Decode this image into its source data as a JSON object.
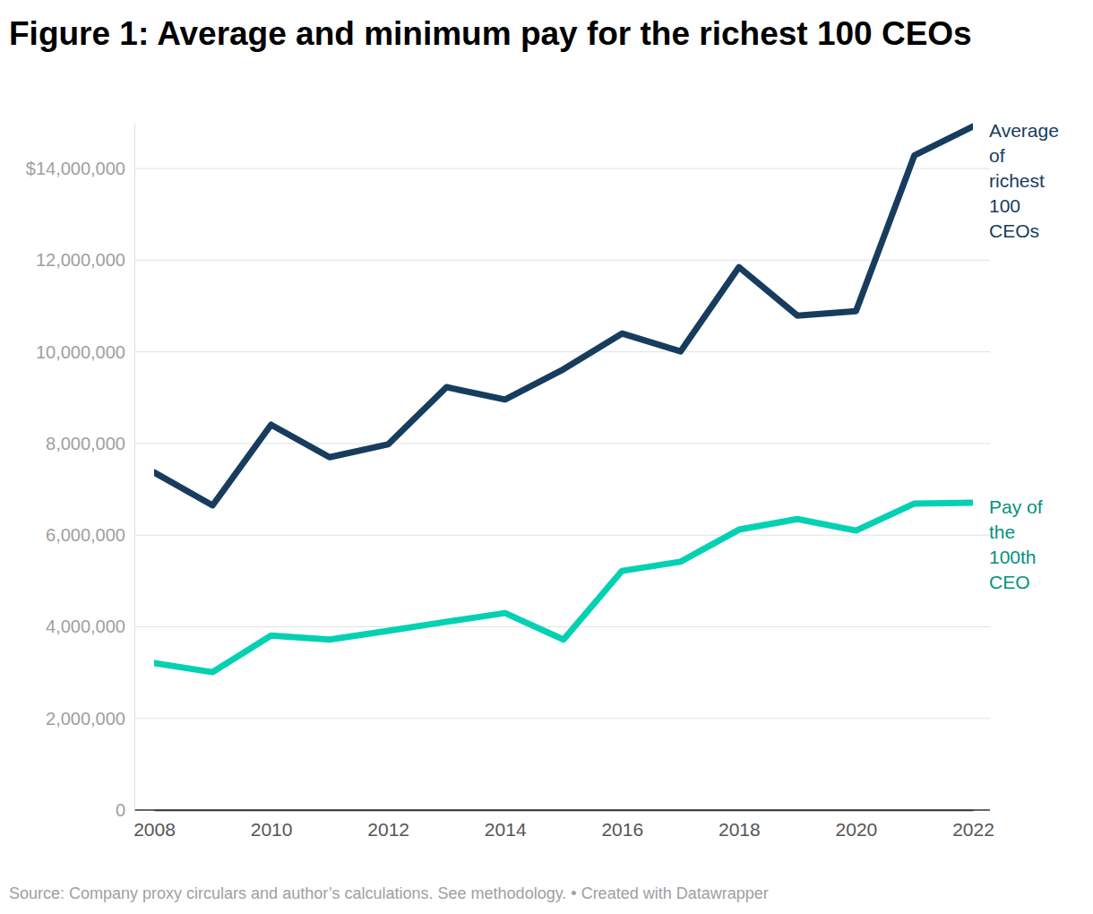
{
  "chart_data": {
    "type": "line",
    "title": "Figure 1: Average and minimum pay for the richest 100 CEOs",
    "source": "Source: Company proxy circulars and author’s calculations. See methodology. • Created with Datawrapper",
    "x": [
      2008,
      2009,
      2010,
      2011,
      2012,
      2013,
      2014,
      2015,
      2016,
      2017,
      2018,
      2019,
      2020,
      2021,
      2022
    ],
    "series": [
      {
        "name": "Average of richest 100 CEOs",
        "color": "#173c5e",
        "values": [
          7370000,
          6650000,
          8410000,
          7700000,
          7980000,
          9230000,
          8960000,
          9620000,
          10400000,
          10010000,
          11850000,
          10790000,
          10890000,
          14290000,
          14920000
        ]
      },
      {
        "name": "Pay of the 100th CEO",
        "color": "#03d1b2",
        "values": [
          3210000,
          3010000,
          3810000,
          3720000,
          3910000,
          4110000,
          4300000,
          3720000,
          5220000,
          5420000,
          6120000,
          6350000,
          6100000,
          6690000,
          6710000
        ]
      }
    ],
    "xlim": [
      2008,
      2022
    ],
    "xticks": [
      2008,
      2010,
      2012,
      2014,
      2016,
      2018,
      2020,
      2022
    ],
    "ylim": [
      0,
      15000000
    ],
    "yticks": [
      0,
      {
        "value": 2000000,
        "label": "2,000,000"
      },
      {
        "value": 4000000,
        "label": "4,000,000"
      },
      {
        "value": 6000000,
        "label": "6,000,000"
      },
      {
        "value": 8000000,
        "label": "8,000,000"
      },
      {
        "value": 10000000,
        "label": "10,000,000"
      },
      {
        "value": 12000000,
        "label": "12,000,000"
      },
      {
        "value": 14000000,
        "label": "$14,000,000"
      }
    ],
    "grid": true
  }
}
